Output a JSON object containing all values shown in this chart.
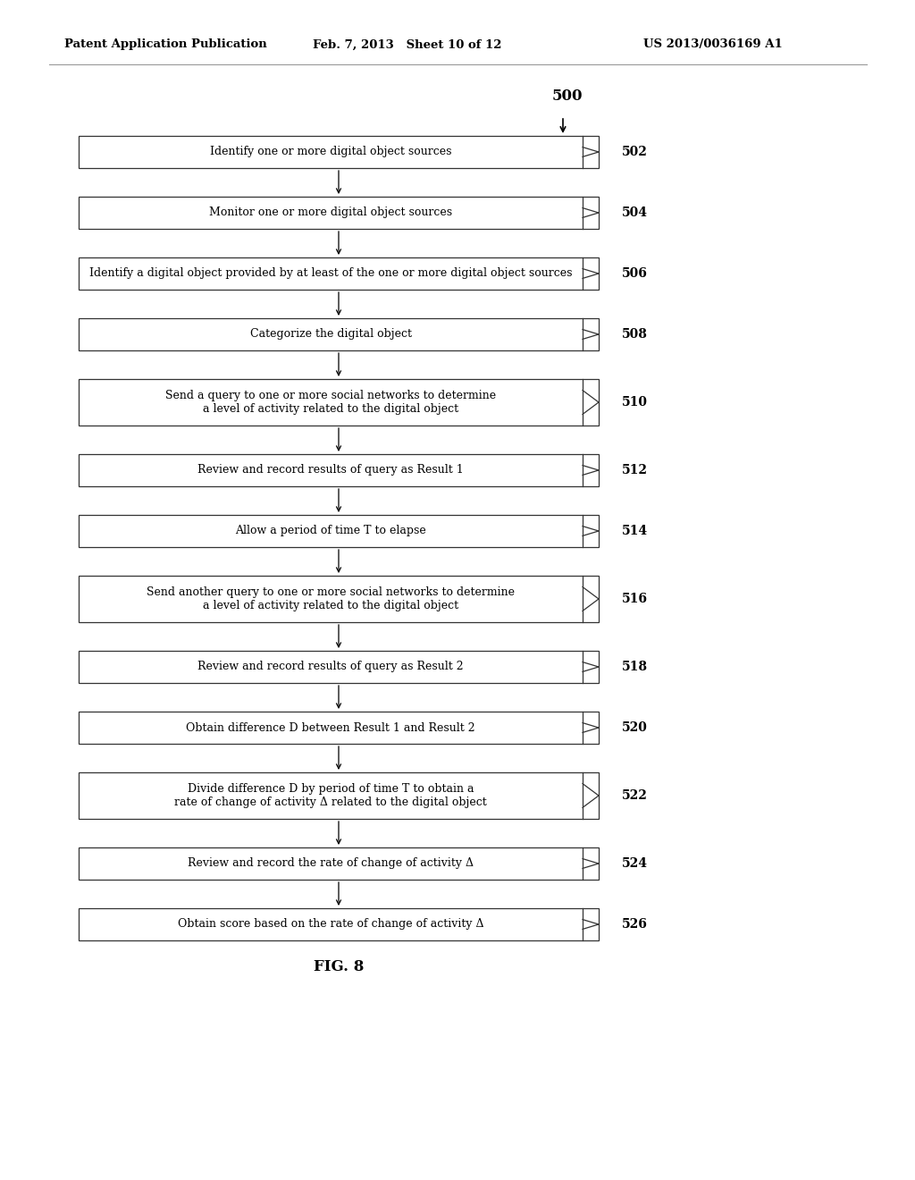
{
  "header_left": "Patent Application Publication",
  "header_mid": "Feb. 7, 2013   Sheet 10 of 12",
  "header_right": "US 2013/0036169 A1",
  "figure_label": "FIG. 8",
  "flow_label": "500",
  "background_color": "#ffffff",
  "text_color": "#000000",
  "box_edge_color": "#333333",
  "box_fill_color": "#ffffff",
  "steps": [
    {
      "id": "502",
      "lines": [
        "Identify one or more digital object sources"
      ],
      "tall": false
    },
    {
      "id": "504",
      "lines": [
        "Monitor one or more digital object sources"
      ],
      "tall": false
    },
    {
      "id": "506",
      "lines": [
        "Identify a digital object provided by at least of the one or more digital object sources"
      ],
      "tall": false
    },
    {
      "id": "508",
      "lines": [
        "Categorize the digital object"
      ],
      "tall": false
    },
    {
      "id": "510",
      "lines": [
        "Send a query to one or more social networks to determine",
        "a level of activity related to the digital object"
      ],
      "tall": true
    },
    {
      "id": "512",
      "lines": [
        "Review and record results of query as Result 1"
      ],
      "tall": false
    },
    {
      "id": "514",
      "lines": [
        "Allow a period of time T to elapse"
      ],
      "tall": false
    },
    {
      "id": "516",
      "lines": [
        "Send another query to one or more social networks to determine",
        "a level of activity related to the digital object"
      ],
      "tall": true
    },
    {
      "id": "518",
      "lines": [
        "Review and record results of query as Result 2"
      ],
      "tall": false
    },
    {
      "id": "520",
      "lines": [
        "Obtain difference D between Result 1 and Result 2"
      ],
      "tall": false
    },
    {
      "id": "522",
      "lines": [
        "Divide difference D by period of time T to obtain a",
        "rate of change of activity Δ related to the digital object"
      ],
      "tall": true
    },
    {
      "id": "524",
      "lines": [
        "Review and record the rate of change of activity Δ"
      ],
      "tall": false
    },
    {
      "id": "526",
      "lines": [
        "Obtain score based on the rate of change of activity Δ"
      ],
      "tall": false
    }
  ]
}
